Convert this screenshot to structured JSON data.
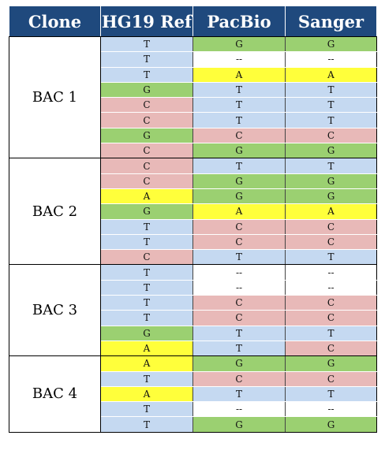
{
  "headers": [
    "Clone",
    "HG19 Ref",
    "PacBio",
    "Sanger"
  ],
  "colors": {
    "header_bg": "#1f497d",
    "T": "#c5d9f1",
    "--": "#ffffff",
    "G": "#9bd071",
    "C": "#e8b9b8",
    "A": "#ffff3b"
  },
  "groups": [
    {
      "clone": "BAC 1",
      "rows": [
        [
          "T",
          "G",
          "G"
        ],
        [
          "T",
          "--",
          "--"
        ],
        [
          "T",
          "A",
          "A"
        ],
        [
          "G",
          "T",
          "T"
        ],
        [
          "C",
          "T",
          "T"
        ],
        [
          "C",
          "T",
          "T"
        ],
        [
          "G",
          "C",
          "C"
        ],
        [
          "C",
          "G",
          "G"
        ]
      ]
    },
    {
      "clone": "BAC 2",
      "rows": [
        [
          "C",
          "T",
          "T"
        ],
        [
          "C",
          "G",
          "G"
        ],
        [
          "A",
          "G",
          "G"
        ],
        [
          "G",
          "A",
          "A"
        ],
        [
          "T",
          "C",
          "C"
        ],
        [
          "T",
          "C",
          "C"
        ],
        [
          "C",
          "T",
          "T"
        ]
      ]
    },
    {
      "clone": "BAC 3",
      "rows": [
        [
          "T",
          "--",
          "--"
        ],
        [
          "T",
          "--",
          "--"
        ],
        [
          "T",
          "C",
          "C"
        ],
        [
          "T",
          "C",
          "C"
        ],
        [
          "G",
          "T",
          "T"
        ],
        [
          "A",
          "T",
          "C"
        ]
      ]
    },
    {
      "clone": "BAC 4",
      "rows": [
        [
          "A",
          "G",
          "G"
        ],
        [
          "T",
          "C",
          "C"
        ],
        [
          "A",
          "T",
          "T"
        ],
        [
          "T",
          "--",
          "--"
        ],
        [
          "T",
          "G",
          "G"
        ]
      ]
    }
  ]
}
